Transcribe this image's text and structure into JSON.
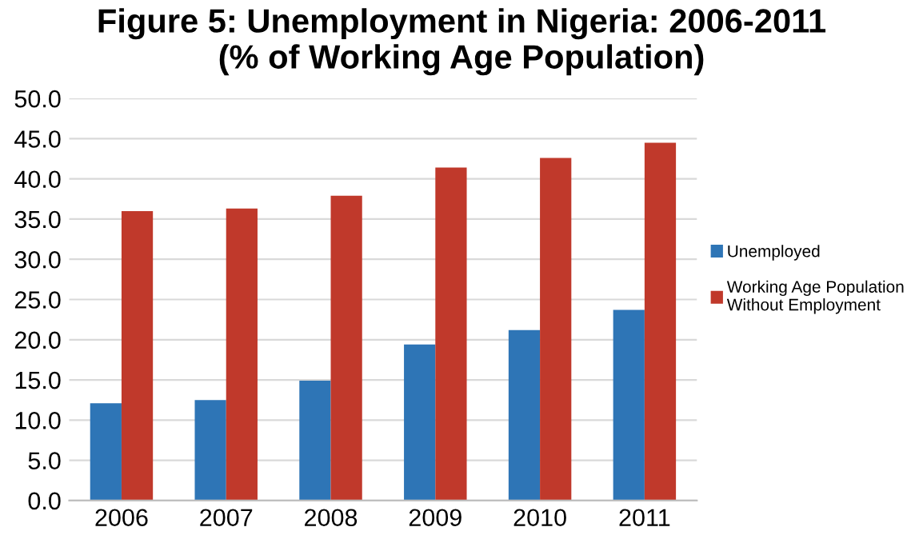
{
  "chart_data": {
    "type": "bar",
    "title": "Figure 5: Unemployment in Nigeria: 2006-2011\n(% of Working Age Population)",
    "categories": [
      "2006",
      "2007",
      "2008",
      "2009",
      "2010",
      "2011"
    ],
    "series": [
      {
        "name": "Unemployed",
        "color": "#2e75b6",
        "values": [
          12.1,
          12.5,
          14.9,
          19.4,
          21.2,
          23.7
        ]
      },
      {
        "name": "Working Age Population\nWithout Employment",
        "color": "#c0392b",
        "values": [
          36.0,
          36.3,
          37.9,
          41.4,
          42.6,
          44.5
        ]
      }
    ],
    "ylim": [
      0,
      50
    ],
    "yticks": [
      {
        "value": 0,
        "label": "0.0"
      },
      {
        "value": 5,
        "label": "5.0"
      },
      {
        "value": 10,
        "label": "10.0"
      },
      {
        "value": 15,
        "label": "15.0"
      },
      {
        "value": 20,
        "label": "20.0"
      },
      {
        "value": 25,
        "label": "25.0"
      },
      {
        "value": 30,
        "label": "30.0"
      },
      {
        "value": 35,
        "label": "35.0"
      },
      {
        "value": 40,
        "label": "40.0"
      },
      {
        "value": 45,
        "label": "45.0"
      },
      {
        "value": 50,
        "label": "50.0"
      }
    ],
    "grid": "y",
    "legend": "right"
  }
}
